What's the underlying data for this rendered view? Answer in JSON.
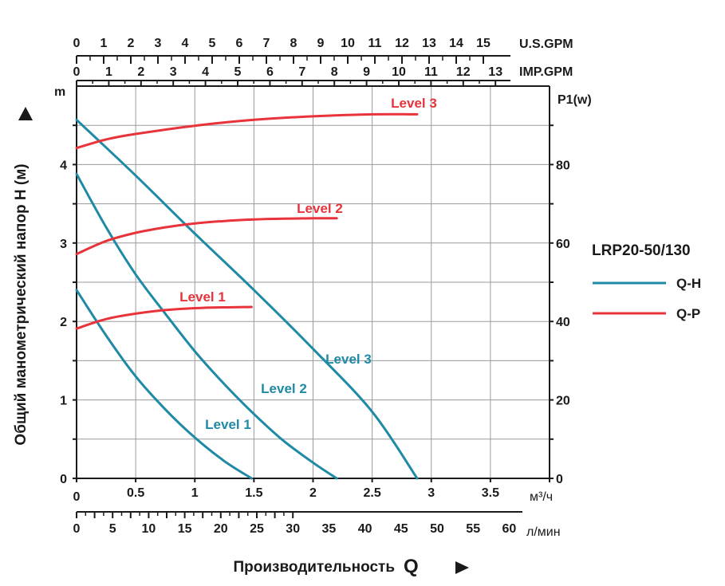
{
  "chart_data": {
    "type": "line",
    "title": "LRP20-50/130",
    "ylabel": "Общий манометрический напор H (м)",
    "ylabel_unit": "m",
    "y2label": "P1(w)",
    "xlabel": "Производительность",
    "xlabel_symbol": "Q",
    "x_units": {
      "m3h": "м³/ч",
      "lmin": "л/мин",
      "usgpm": "U.S.GPM",
      "impgpm": "IMP.GPM"
    },
    "xlim": [
      0,
      4.0
    ],
    "ylim": [
      0,
      5.0
    ],
    "y2lim": [
      0,
      100
    ],
    "x_ticks_m3h": [
      "0",
      "0.5",
      "1",
      "1.5",
      "2",
      "2.5",
      "3",
      "3.5"
    ],
    "x_ticks_lmin": [
      "0",
      "5",
      "10",
      "15",
      "20",
      "25",
      "30",
      "35",
      "40",
      "45",
      "50",
      "55",
      "60"
    ],
    "x_ticks_usgpm": [
      "0",
      "1",
      "2",
      "3",
      "4",
      "5",
      "6",
      "7",
      "8",
      "9",
      "10",
      "11",
      "12",
      "13",
      "14",
      "15"
    ],
    "x_ticks_impgpm": [
      "0",
      "1",
      "2",
      "3",
      "4",
      "5",
      "6",
      "7",
      "8",
      "9",
      "10",
      "11",
      "12",
      "13"
    ],
    "y_ticks": [
      "0",
      "1",
      "2",
      "3",
      "4"
    ],
    "y2_ticks": [
      "0",
      "20",
      "40",
      "60",
      "80"
    ],
    "legend": [
      {
        "name": "Q-H",
        "color": "#1f8aa6"
      },
      {
        "name": "Q-P",
        "color": "#e8333b"
      }
    ],
    "series": [
      {
        "name": "Level 1",
        "kind": "Q-H",
        "color": "#1f8aa6",
        "label": "Level 1",
        "points": [
          [
            0,
            2.4
          ],
          [
            0.25,
            1.82
          ],
          [
            0.5,
            1.3
          ],
          [
            0.75,
            0.88
          ],
          [
            1.0,
            0.52
          ],
          [
            1.25,
            0.22
          ],
          [
            1.48,
            0.0
          ]
        ]
      },
      {
        "name": "Level 2",
        "kind": "Q-H",
        "color": "#1f8aa6",
        "label": "Level 2",
        "points": [
          [
            0,
            3.88
          ],
          [
            0.25,
            3.2
          ],
          [
            0.5,
            2.6
          ],
          [
            0.75,
            2.1
          ],
          [
            1.0,
            1.62
          ],
          [
            1.25,
            1.2
          ],
          [
            1.5,
            0.82
          ],
          [
            1.75,
            0.48
          ],
          [
            2.0,
            0.2
          ],
          [
            2.2,
            0.0
          ]
        ]
      },
      {
        "name": "Level 3",
        "kind": "Q-H",
        "color": "#1f8aa6",
        "label": "Level 3",
        "points": [
          [
            0,
            4.57
          ],
          [
            0.5,
            3.86
          ],
          [
            1.0,
            3.12
          ],
          [
            1.5,
            2.4
          ],
          [
            2.0,
            1.65
          ],
          [
            2.5,
            0.85
          ],
          [
            2.88,
            0.0
          ]
        ]
      },
      {
        "name": "Level 1",
        "kind": "Q-P",
        "color": "#e8333b",
        "label": "Level 1",
        "points": [
          [
            0,
            38.2
          ],
          [
            0.25,
            40.6
          ],
          [
            0.5,
            42.0
          ],
          [
            0.75,
            42.9
          ],
          [
            1.0,
            43.4
          ],
          [
            1.25,
            43.6
          ],
          [
            1.48,
            43.7
          ]
        ]
      },
      {
        "name": "Level 2",
        "kind": "Q-P",
        "color": "#e8333b",
        "label": "Level 2",
        "points": [
          [
            0,
            57.2
          ],
          [
            0.25,
            60.5
          ],
          [
            0.5,
            62.6
          ],
          [
            0.75,
            64.0
          ],
          [
            1.0,
            65.0
          ],
          [
            1.25,
            65.6
          ],
          [
            1.5,
            66.0
          ],
          [
            1.75,
            66.2
          ],
          [
            2.0,
            66.3
          ],
          [
            2.2,
            66.3
          ]
        ]
      },
      {
        "name": "Level 3",
        "kind": "Q-P",
        "color": "#e8333b",
        "label": "Level 3",
        "points": [
          [
            0,
            84.2
          ],
          [
            0.25,
            86.4
          ],
          [
            0.5,
            87.8
          ],
          [
            1.0,
            89.9
          ],
          [
            1.5,
            91.4
          ],
          [
            2.0,
            92.3
          ],
          [
            2.5,
            92.8
          ],
          [
            2.88,
            92.8
          ]
        ]
      }
    ]
  }
}
